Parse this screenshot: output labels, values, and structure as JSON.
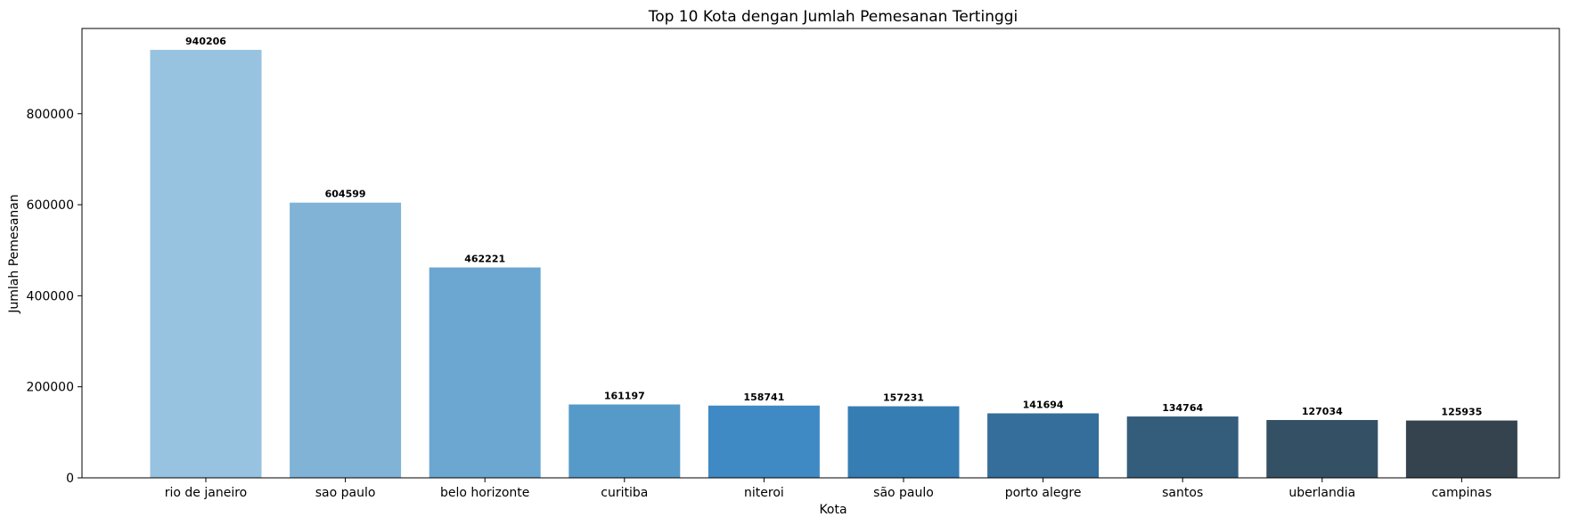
{
  "chart_data": {
    "type": "bar",
    "title": "Top 10 Kota dengan Jumlah Pemesanan Tertinggi",
    "xlabel": "Kota",
    "ylabel": "Jumlah Pemesanan",
    "categories": [
      "rio de janeiro",
      "sao paulo",
      "belo horizonte",
      "curitiba",
      "niteroi",
      "são paulo",
      "porto alegre",
      "santos",
      "uberlandia",
      "campinas"
    ],
    "values": [
      940206,
      604599,
      462221,
      161197,
      158741,
      157231,
      141694,
      134764,
      127034,
      125935
    ],
    "data_labels": [
      "940206",
      "604599",
      "462221",
      "161197",
      "158741",
      "157231",
      "141694",
      "134764",
      "127034",
      "125935"
    ],
    "colors": [
      "#97c2e0",
      "#80b3d6",
      "#6ca7d1",
      "#569ac9",
      "#3f8ac4",
      "#367db4",
      "#356e9a",
      "#345d7c",
      "#345065",
      "#35434e"
    ],
    "yticks": [
      0,
      200000,
      400000,
      600000,
      800000
    ],
    "ytick_labels": [
      "0",
      "200000",
      "400000",
      "600000",
      "800000"
    ],
    "ylim": [
      0,
      987216
    ],
    "grid": false,
    "legend": "none"
  }
}
